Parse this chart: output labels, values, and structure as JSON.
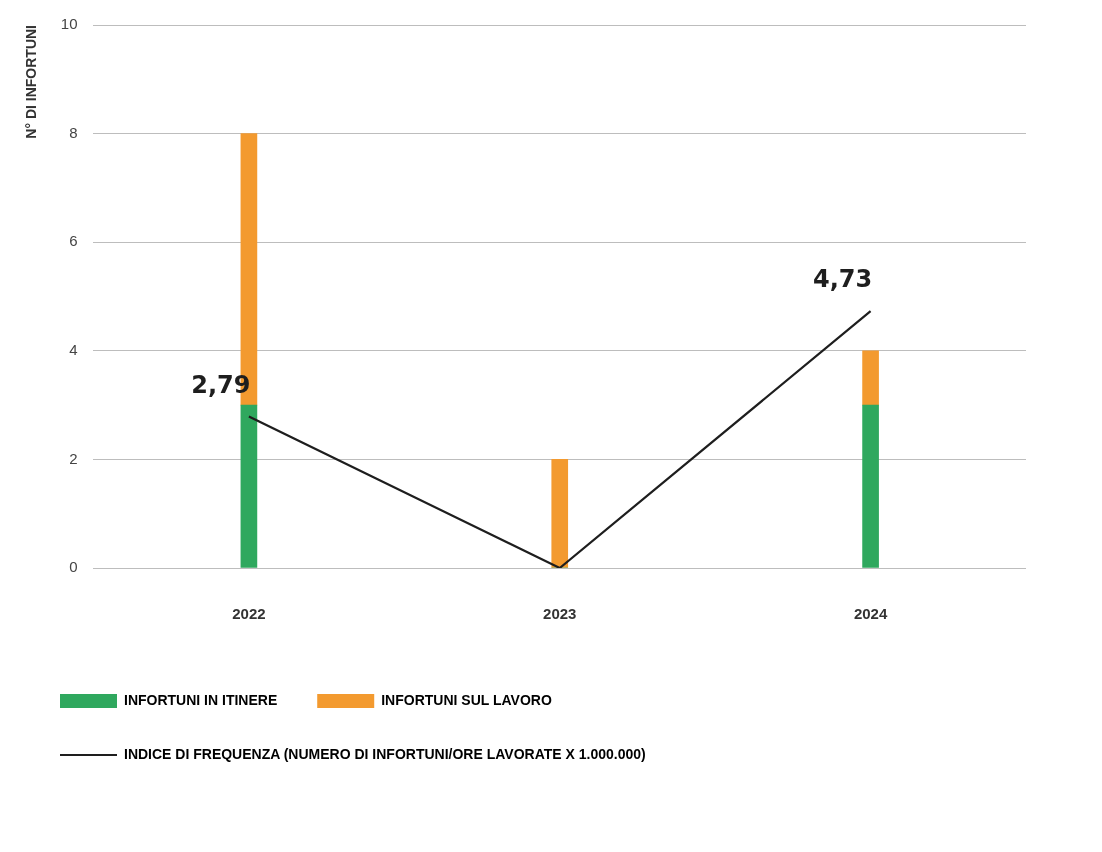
{
  "chart_data": {
    "type": "bar",
    "ylabel": "N° DI INFORTUNI",
    "categories": [
      "2022",
      "2023",
      "2024"
    ],
    "stacked": true,
    "ylim": [
      0,
      10
    ],
    "yticks": [
      0,
      2,
      4,
      6,
      8,
      10
    ],
    "grid": "y",
    "legend": "bottom",
    "series": [
      {
        "name": "INFORTUNI IN ITINERE",
        "color": "#2fa85e",
        "values": [
          3,
          0,
          3
        ]
      },
      {
        "name": "INFORTUNI SUL LAVORO",
        "color": "#f39a2f",
        "values": [
          5,
          2,
          1
        ]
      },
      {
        "name": "INDICE DI FREQUENZA (NUMERO DI INFORTUNI/ORE LAVORATE X 1.000.000)",
        "type": "line",
        "color": "#1e1e1e",
        "marker": "none",
        "line_style": "solid",
        "values": [
          2.79,
          0,
          4.73
        ],
        "value_labels": [
          "2,79",
          null,
          "4,73"
        ]
      }
    ]
  }
}
